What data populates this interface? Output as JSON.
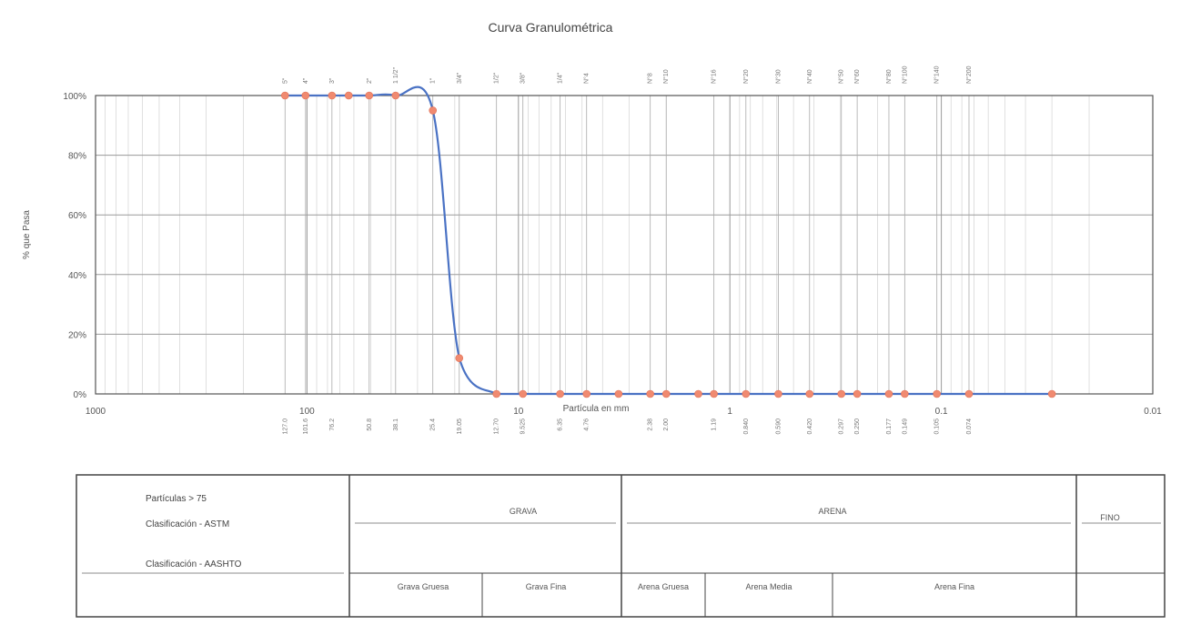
{
  "chart_data": {
    "type": "line",
    "title": "Curva Granulométrica",
    "xlabel": "Partícula en mm",
    "ylabel": "% que Pasa",
    "x_scale": "log",
    "x_reversed": true,
    "xlim": [
      1000,
      0.01
    ],
    "ylim": [
      0,
      100
    ],
    "x_ticks": [
      {
        "value": 1000,
        "label": "1000"
      },
      {
        "value": 100,
        "label": "100"
      },
      {
        "value": 10,
        "label": "10"
      },
      {
        "value": 1,
        "label": "1"
      },
      {
        "value": 0.1,
        "label": "0.1"
      },
      {
        "value": 0.01,
        "label": "0.01"
      }
    ],
    "y_ticks": [
      {
        "value": 100,
        "label": "100%"
      },
      {
        "value": 80,
        "label": "80%"
      },
      {
        "value": 60,
        "label": "60%"
      },
      {
        "value": 40,
        "label": "40%"
      },
      {
        "value": 20,
        "label": "20%"
      },
      {
        "value": 0,
        "label": "0%"
      }
    ],
    "grid": true,
    "sieves": [
      {
        "x": 127,
        "top": "5\"",
        "bottom": "127.0"
      },
      {
        "x": 101.6,
        "top": "4\"",
        "bottom": "101.6"
      },
      {
        "x": 76.2,
        "top": "3\"",
        "bottom": "76.2"
      },
      {
        "x": 50.8,
        "top": "2\"",
        "bottom": "50.8"
      },
      {
        "x": 38.1,
        "top": "1 1/2\"",
        "bottom": "38.1"
      },
      {
        "x": 25.4,
        "top": "1\"",
        "bottom": "25.4"
      },
      {
        "x": 19.05,
        "top": "3/4\"",
        "bottom": "19.05"
      },
      {
        "x": 12.7,
        "top": "1/2\"",
        "bottom": "12.70"
      },
      {
        "x": 9.525,
        "top": "3/8\"",
        "bottom": "9.525"
      },
      {
        "x": 6.35,
        "top": "1/4\"",
        "bottom": "6.35"
      },
      {
        "x": 4.76,
        "top": "N°4",
        "bottom": "4.76"
      },
      {
        "x": 2.38,
        "top": "N°8",
        "bottom": "2.38"
      },
      {
        "x": 2.0,
        "top": "N°10",
        "bottom": "2.00"
      },
      {
        "x": 1.19,
        "top": "N°16",
        "bottom": "1.19"
      },
      {
        "x": 0.84,
        "top": "N°20",
        "bottom": "0.840"
      },
      {
        "x": 0.59,
        "top": "N°30",
        "bottom": "0.590"
      },
      {
        "x": 0.42,
        "top": "N°40",
        "bottom": "0.420"
      },
      {
        "x": 0.297,
        "top": "N°50",
        "bottom": "0.297"
      },
      {
        "x": 0.25,
        "top": "N°60",
        "bottom": "0.250"
      },
      {
        "x": 0.177,
        "top": "N°80",
        "bottom": "0.177"
      },
      {
        "x": 0.149,
        "top": "N°100",
        "bottom": "0.149"
      },
      {
        "x": 0.105,
        "top": "N°140",
        "bottom": "0.105"
      },
      {
        "x": 0.074,
        "top": "N°200",
        "bottom": "0.074"
      }
    ],
    "series": [
      {
        "color": "#4a72c4",
        "marker_color": "#f08a70",
        "x": [
          127,
          101.6,
          76.2,
          63.5,
          50.8,
          38.1,
          25.4,
          19.05,
          12.7,
          9.525,
          6.35,
          4.76,
          3.36,
          2.38,
          2.0,
          1.41,
          1.19,
          0.84,
          0.59,
          0.42,
          0.297,
          0.25,
          0.177,
          0.149,
          0.105,
          0.074,
          0.03
        ],
        "y": [
          100,
          100,
          100,
          100,
          100,
          100,
          95,
          12,
          0,
          0,
          0,
          0,
          0,
          0,
          0,
          0,
          0,
          0,
          0,
          0,
          0,
          0,
          0,
          0,
          0,
          0,
          0
        ]
      }
    ]
  },
  "classification": {
    "lines": [
      "Partículas > 75",
      "Clasificación - ASTM",
      "Clasificación - AASHTO"
    ],
    "zones": {
      "grava": "GRAVA",
      "arena": "ARENA",
      "finos": "FINO"
    },
    "subzones": {
      "grava_gruesa": "Grava Gruesa",
      "grava_fina": "Grava Fina",
      "arena_gruesa": "Arena Gruesa",
      "arena_media": "Arena Media",
      "arena_fina": "Arena Fina"
    }
  }
}
